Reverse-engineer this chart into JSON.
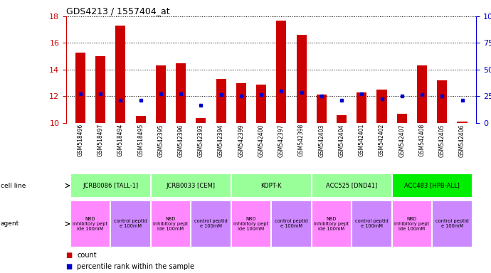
{
  "title": "GDS4213 / 1557404_at",
  "samples": [
    "GSM518496",
    "GSM518497",
    "GSM518494",
    "GSM518495",
    "GSM542395",
    "GSM542396",
    "GSM542393",
    "GSM542394",
    "GSM542399",
    "GSM542400",
    "GSM542397",
    "GSM542398",
    "GSM542403",
    "GSM542404",
    "GSM542401",
    "GSM542402",
    "GSM542407",
    "GSM542408",
    "GSM542405",
    "GSM542406"
  ],
  "bar_values": [
    15.3,
    15.0,
    17.3,
    10.5,
    14.3,
    14.5,
    10.35,
    13.3,
    13.0,
    12.9,
    17.7,
    16.6,
    12.1,
    10.6,
    12.3,
    12.5,
    10.7,
    14.3,
    13.2,
    10.1
  ],
  "dot_values": [
    12.2,
    12.2,
    11.7,
    11.7,
    12.2,
    12.2,
    11.3,
    12.1,
    12.0,
    12.1,
    12.4,
    12.3,
    12.0,
    11.7,
    12.2,
    11.8,
    12.0,
    12.1,
    12.0,
    11.7
  ],
  "ymin": 10,
  "ymax": 18,
  "yticks_left": [
    10,
    12,
    14,
    16,
    18
  ],
  "yticks_right": [
    0,
    25,
    50,
    75,
    100
  ],
  "cell_lines": [
    {
      "label": "JCRB0086 [TALL-1]",
      "start": 0,
      "end": 4,
      "color": "#99FF99"
    },
    {
      "label": "JCRB0033 [CEM]",
      "start": 4,
      "end": 8,
      "color": "#99FF99"
    },
    {
      "label": "KOPT-K",
      "start": 8,
      "end": 12,
      "color": "#99FF99"
    },
    {
      "label": "ACC525 [DND41]",
      "start": 12,
      "end": 16,
      "color": "#99FF99"
    },
    {
      "label": "ACC483 [HPB-ALL]",
      "start": 16,
      "end": 20,
      "color": "#00EE00"
    }
  ],
  "agents": [
    {
      "label": "NBD\ninhibitory pept\nide 100mM",
      "start": 0,
      "end": 2,
      "color": "#FF88FF"
    },
    {
      "label": "control peptid\ne 100mM",
      "start": 2,
      "end": 4,
      "color": "#CC88FF"
    },
    {
      "label": "NBD\ninhibitory pept\nide 100mM",
      "start": 4,
      "end": 6,
      "color": "#FF88FF"
    },
    {
      "label": "control peptid\ne 100mM",
      "start": 6,
      "end": 8,
      "color": "#CC88FF"
    },
    {
      "label": "NBD\ninhibitory pept\nide 100mM",
      "start": 8,
      "end": 10,
      "color": "#FF88FF"
    },
    {
      "label": "control peptid\ne 100mM",
      "start": 10,
      "end": 12,
      "color": "#CC88FF"
    },
    {
      "label": "NBD\ninhibitory pept\nide 100mM",
      "start": 12,
      "end": 14,
      "color": "#FF88FF"
    },
    {
      "label": "control peptid\ne 100mM",
      "start": 14,
      "end": 16,
      "color": "#CC88FF"
    },
    {
      "label": "NBD\ninhibitory pept\nide 100mM",
      "start": 16,
      "end": 18,
      "color": "#FF88FF"
    },
    {
      "label": "control peptid\ne 100mM",
      "start": 18,
      "end": 20,
      "color": "#CC88FF"
    }
  ],
  "bar_color": "#CC0000",
  "dot_color": "#0000CC",
  "left_axis_color": "#CC0000",
  "right_axis_color": "#0000CC",
  "legend_items": [
    {
      "color": "#CC0000",
      "label": "count"
    },
    {
      "color": "#0000CC",
      "label": "percentile rank within the sample"
    }
  ]
}
